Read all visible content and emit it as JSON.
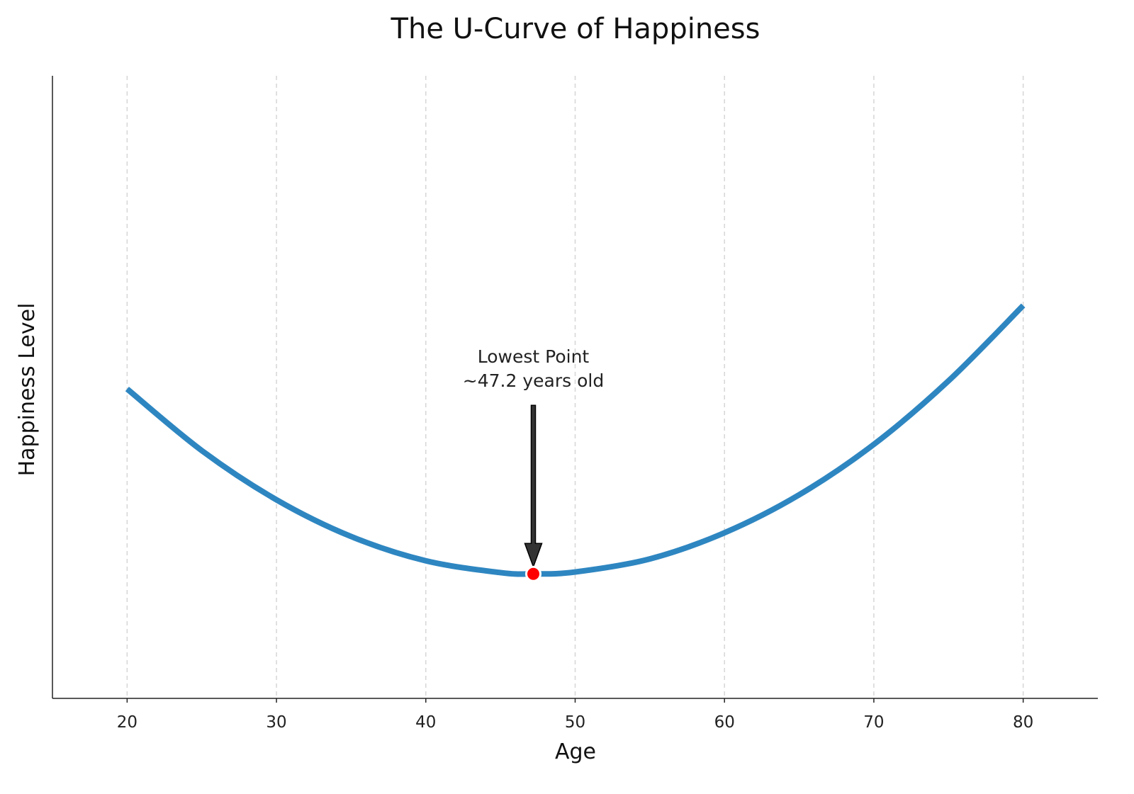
{
  "chart_data": {
    "type": "line",
    "title": "The U-Curve of Happiness",
    "xlabel": "Age",
    "ylabel": "Happiness Level",
    "xlim": [
      15,
      85
    ],
    "ylim": [
      0,
      1
    ],
    "xticks": [
      20,
      30,
      40,
      50,
      60,
      70,
      80
    ],
    "yticks_shown": false,
    "grid": "vertical dashed",
    "series": [
      {
        "color": "#2e86c1",
        "x": [
          20,
          25,
          30,
          35,
          40,
          45,
          47.2,
          50,
          55,
          60,
          65,
          70,
          75,
          80
        ],
        "y": [
          0.497,
          0.398,
          0.319,
          0.26,
          0.221,
          0.202,
          0.2,
          0.203,
          0.224,
          0.266,
          0.327,
          0.408,
          0.51,
          0.631
        ]
      }
    ],
    "highlight_point": {
      "x": 47.2,
      "y": 0.2,
      "color": "#ff0000"
    },
    "annotation": {
      "lines": [
        "Lowest Point",
        "~47.2 years old"
      ],
      "arrow_color": "#333333"
    }
  }
}
